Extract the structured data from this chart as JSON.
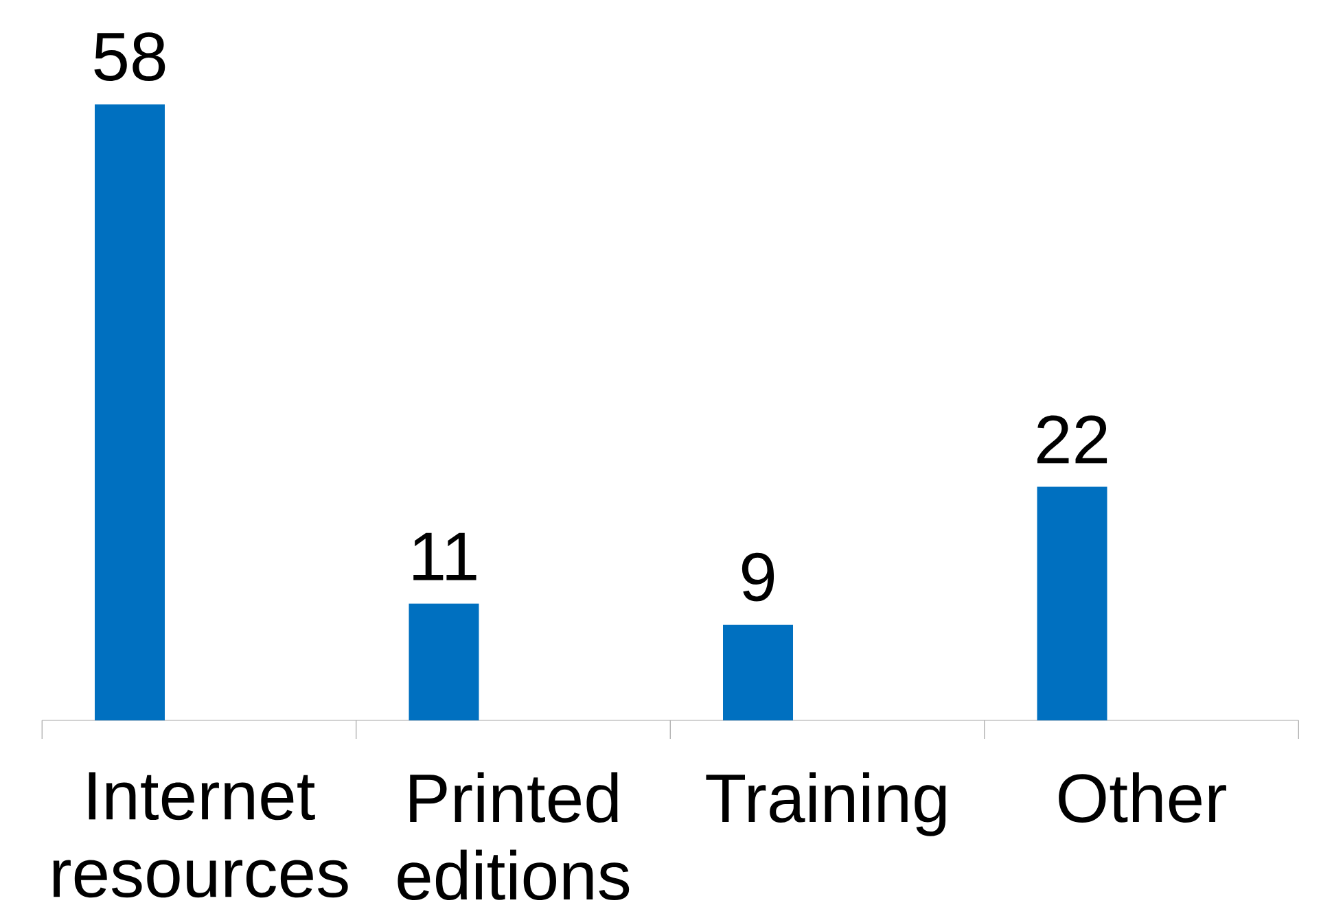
{
  "chart_data": {
    "type": "bar",
    "categories": [
      "Internet resources",
      "Printed editions",
      "Training",
      "Other"
    ],
    "values": [
      58,
      11,
      9,
      22
    ],
    "color": "#0070c0",
    "data_labels": true
  }
}
